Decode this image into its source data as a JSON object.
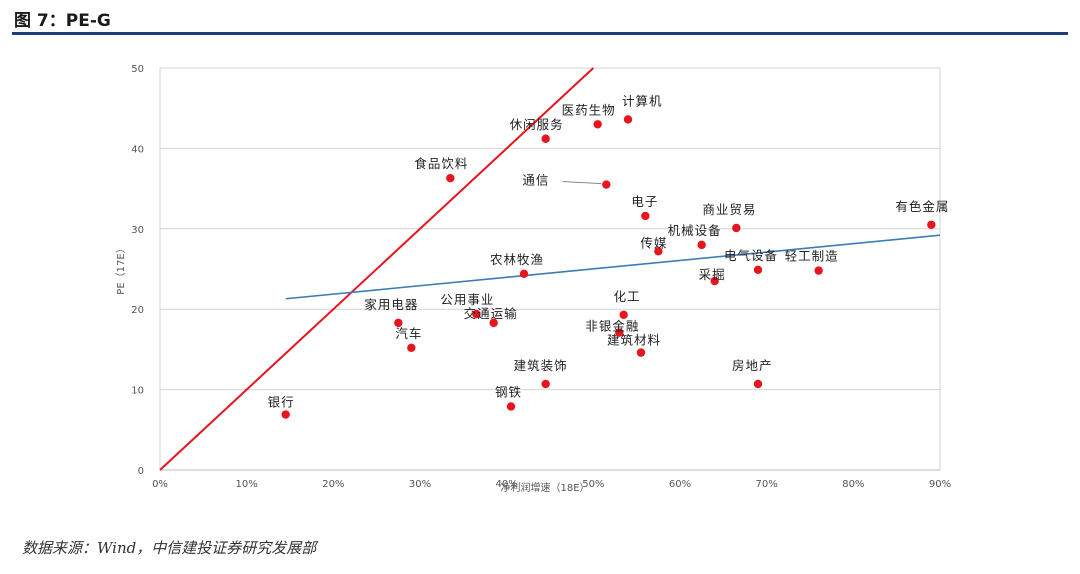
{
  "figure": {
    "title": "图 7：PE-G",
    "source": "数据来源：Wind，中信建投证券研究发展部"
  },
  "colors": {
    "accent_rule": "#1f3d7a",
    "point": "#e8141e",
    "pe_equals_g_line": "#e8141e",
    "trend_line": "#3a7cb8",
    "grid": "#d4d4d4"
  },
  "chart_data": {
    "type": "scatter",
    "title": "",
    "xlabel": "净利润增速（18E）",
    "ylabel": "PE（17E）",
    "xlim": [
      0,
      90
    ],
    "ylim": [
      0,
      50
    ],
    "x_ticks": [
      "0%",
      "10%",
      "20%",
      "30%",
      "40%",
      "50%",
      "60%",
      "70%",
      "80%",
      "90%"
    ],
    "y_ticks": [
      "0",
      "10",
      "20",
      "30",
      "40",
      "50"
    ],
    "grid": "horizontal",
    "points": [
      {
        "label": "银行",
        "x": 14.5,
        "y": 6.9
      },
      {
        "label": "钢铁",
        "x": 40.5,
        "y": 7.9
      },
      {
        "label": "建筑装饰",
        "x": 44.5,
        "y": 10.7
      },
      {
        "label": "房地产",
        "x": 69.0,
        "y": 10.7
      },
      {
        "label": "汽车",
        "x": 29.0,
        "y": 15.2
      },
      {
        "label": "家用电器",
        "x": 27.5,
        "y": 18.3
      },
      {
        "label": "公用事业",
        "x": 36.5,
        "y": 19.4
      },
      {
        "label": "交通运输",
        "x": 38.5,
        "y": 18.3
      },
      {
        "label": "建筑材料",
        "x": 55.5,
        "y": 14.6
      },
      {
        "label": "非银金融",
        "x": 53.0,
        "y": 17.1
      },
      {
        "label": "化工",
        "x": 53.5,
        "y": 19.3
      },
      {
        "label": "农林牧渔",
        "x": 42.0,
        "y": 24.4
      },
      {
        "label": "采掘",
        "x": 64.0,
        "y": 23.5
      },
      {
        "label": "电气设备",
        "x": 69.0,
        "y": 24.9
      },
      {
        "label": "轻工制造",
        "x": 76.0,
        "y": 24.8
      },
      {
        "label": "传媒",
        "x": 57.5,
        "y": 27.2
      },
      {
        "label": "机械设备",
        "x": 62.5,
        "y": 28.0
      },
      {
        "label": "商业贸易",
        "x": 66.5,
        "y": 30.1
      },
      {
        "label": "电子",
        "x": 56.0,
        "y": 31.6
      },
      {
        "label": "通信",
        "x": 51.5,
        "y": 35.5
      },
      {
        "label": "食品饮料",
        "x": 33.5,
        "y": 36.3
      },
      {
        "label": "休闲服务",
        "x": 44.5,
        "y": 41.2
      },
      {
        "label": "医药生物",
        "x": 50.5,
        "y": 43.0
      },
      {
        "label": "计算机",
        "x": 54.0,
        "y": 43.6
      },
      {
        "label": "有色金属",
        "x": 89.0,
        "y": 30.5
      }
    ],
    "reference_line": {
      "name": "PE = G",
      "from": [
        0,
        0
      ],
      "to": [
        50,
        50
      ]
    },
    "trend_line": {
      "from": [
        14.5,
        21.3
      ],
      "to": [
        90,
        29.2
      ]
    }
  }
}
